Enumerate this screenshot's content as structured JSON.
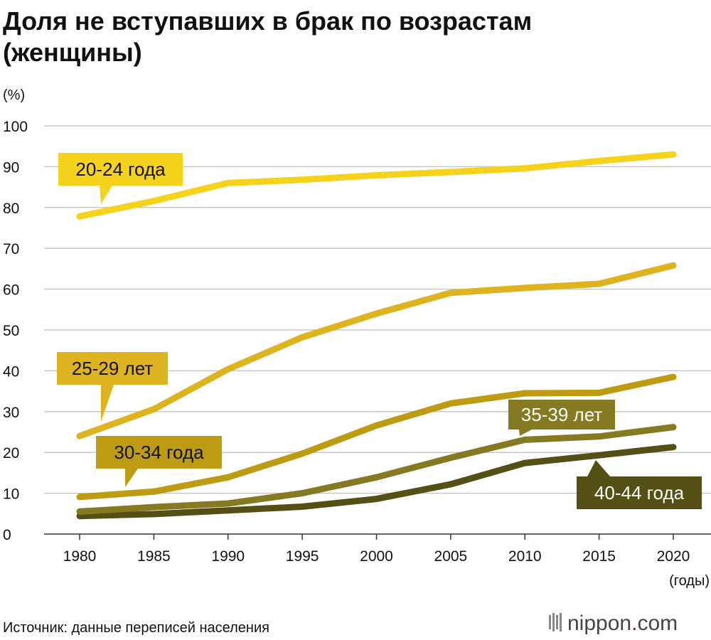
{
  "title": {
    "line1": "Доля не вступавших в брак по возрастам",
    "line2": "(женщины)"
  },
  "source": "Источник: данные переписей населения",
  "brand": {
    "name": "nippon",
    "dot": ".",
    "suffix": "com",
    "dot_color": "#d6002a"
  },
  "chart_data": {
    "type": "line",
    "title": "Доля не вступавших в брак по возрастам (женщины)",
    "ylabel": "(%)",
    "xlabel": "(годы)",
    "x": [
      1980,
      1985,
      1990,
      1995,
      2000,
      2005,
      2010,
      2015,
      2020
    ],
    "x_tick_labels": [
      "1980",
      "1985",
      "1990",
      "1995",
      "2000",
      "2005",
      "2010",
      "2015",
      "2020"
    ],
    "ylim": [
      0,
      100
    ],
    "y_ticks": [
      0,
      10,
      20,
      30,
      40,
      50,
      60,
      70,
      80,
      90,
      100
    ],
    "y_tick_labels": [
      "0",
      "10",
      "20",
      "30",
      "40",
      "50",
      "60",
      "70",
      "80",
      "90",
      "100"
    ],
    "grid": true,
    "series": [
      {
        "name": "20-24 года",
        "color": "#f5d21c",
        "text_color": "#111111",
        "values": [
          77.8,
          81.6,
          86.0,
          86.8,
          87.9,
          88.7,
          89.6,
          91.4,
          93.0
        ]
      },
      {
        "name": "25-29 лет",
        "color": "#ddb31f",
        "text_color": "#111111",
        "values": [
          24.0,
          30.6,
          40.4,
          48.2,
          54.0,
          59.1,
          60.3,
          61.3,
          65.8
        ]
      },
      {
        "name": "30-34 года",
        "color": "#bd9c14",
        "text_color": "#111111",
        "values": [
          9.1,
          10.4,
          13.9,
          19.7,
          26.6,
          32.0,
          34.5,
          34.6,
          38.5
        ]
      },
      {
        "name": "35-39 лет",
        "color": "#857a22",
        "text_color": "#ffffff",
        "values": [
          5.5,
          6.6,
          7.5,
          10.0,
          13.9,
          18.7,
          23.1,
          23.9,
          26.2
        ]
      },
      {
        "name": "40-44 года",
        "color": "#545015",
        "text_color": "#ffffff",
        "values": [
          4.4,
          4.9,
          5.8,
          6.7,
          8.6,
          12.2,
          17.4,
          19.3,
          21.3
        ]
      }
    ]
  }
}
